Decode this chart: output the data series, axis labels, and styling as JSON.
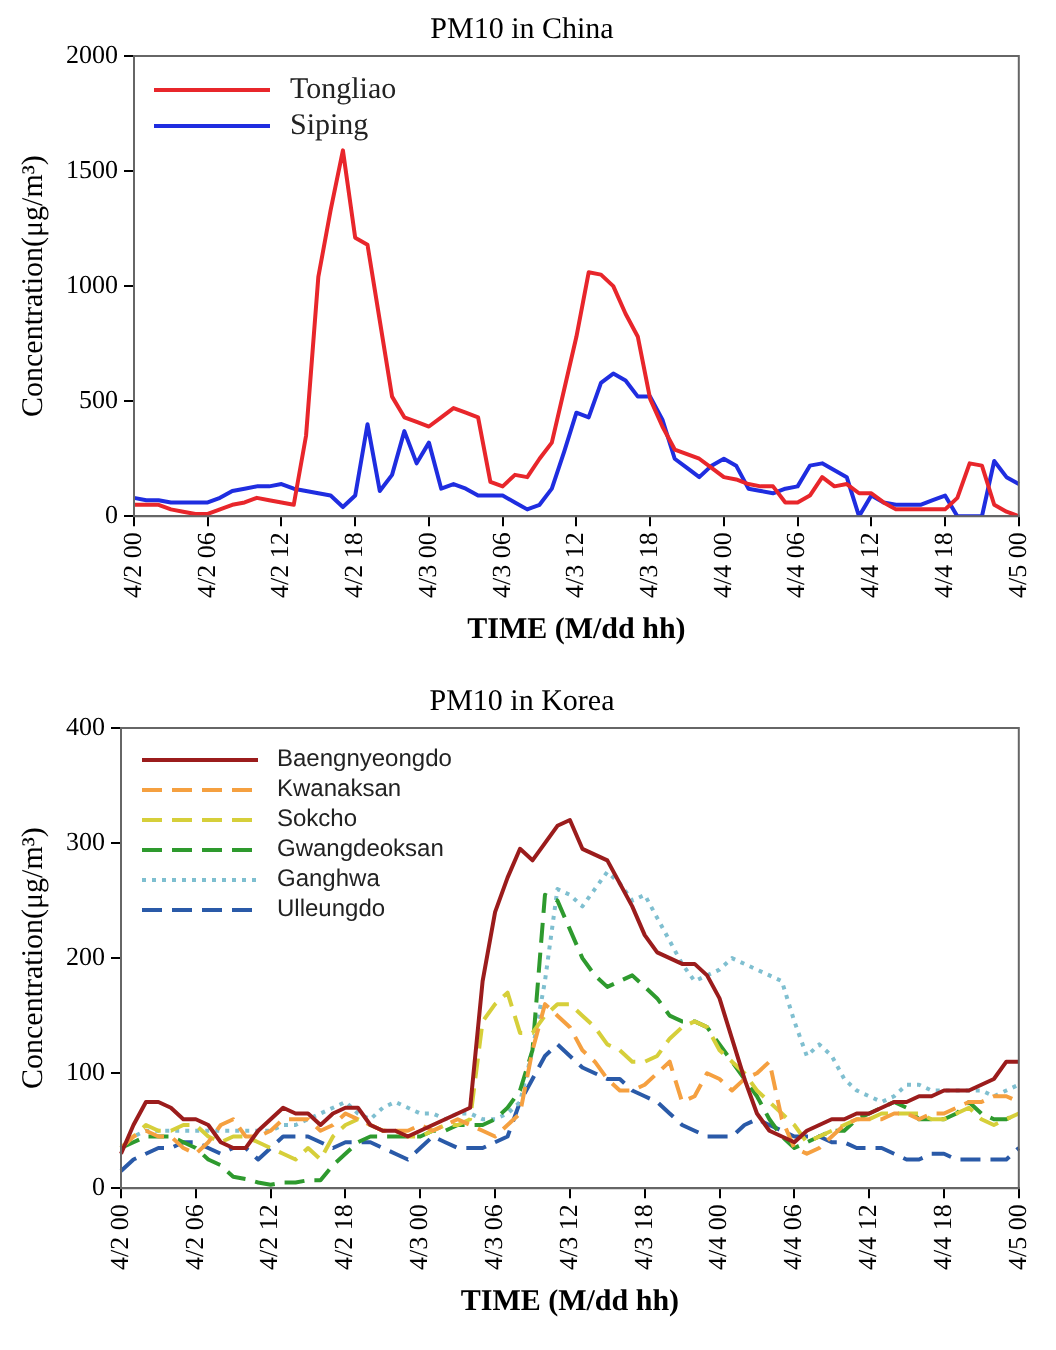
{
  "chart_data": [
    {
      "type": "line",
      "title": "PM10 in China",
      "xlabel": "TIME (M/dd hh)",
      "ylabel": "Concentration(μg/m³)",
      "grid": false,
      "legend": "top left",
      "marker": "none",
      "categories": [
        "4/2 00",
        null,
        null,
        null,
        null,
        null,
        "4/2 06",
        null,
        null,
        null,
        null,
        null,
        "4/2 12",
        null,
        null,
        null,
        null,
        null,
        "4/2 18",
        null,
        null,
        null,
        null,
        null,
        "4/3 00",
        null,
        null,
        null,
        null,
        null,
        "4/3 06",
        null,
        null,
        null,
        null,
        null,
        "4/3 12",
        null,
        null,
        null,
        null,
        null,
        "4/3 18",
        null,
        null,
        null,
        null,
        null,
        "4/4 00",
        null,
        null,
        null,
        null,
        null,
        "4/4 06",
        null,
        null,
        null,
        null,
        null,
        "4/4 12",
        null,
        null,
        null,
        null,
        null,
        "4/4 18",
        null,
        null,
        null,
        null,
        null,
        "4/5 00"
      ],
      "ylim": [
        0,
        2000
      ],
      "yticks": [
        0,
        500,
        1000,
        1500,
        2000
      ],
      "series": [
        {
          "name": "Tongliao",
          "color": "#e8262b",
          "line_style": "solid",
          "values": [
            50,
            50,
            50,
            30,
            20,
            10,
            10,
            30,
            50,
            60,
            80,
            70,
            60,
            50,
            350,
            1040,
            1330,
            1590,
            1210,
            1180,
            850,
            520,
            430,
            410,
            390,
            430,
            470,
            450,
            430,
            150,
            130,
            180,
            170,
            250,
            320,
            550,
            780,
            1060,
            1050,
            1000,
            880,
            780,
            510,
            390,
            290,
            270,
            250,
            210,
            170,
            160,
            140,
            130,
            130,
            60,
            60,
            90,
            170,
            130,
            140,
            100,
            100,
            60,
            30,
            30,
            30,
            30,
            30,
            80,
            230,
            220,
            50,
            20,
            0
          ]
        },
        {
          "name": "Siping",
          "color": "#1f2de0",
          "line_style": "solid",
          "values": [
            80,
            70,
            70,
            60,
            60,
            60,
            60,
            80,
            110,
            120,
            130,
            130,
            140,
            120,
            110,
            100,
            90,
            40,
            90,
            400,
            110,
            180,
            370,
            230,
            320,
            120,
            140,
            120,
            90,
            90,
            90,
            60,
            30,
            50,
            120,
            280,
            450,
            430,
            580,
            620,
            590,
            520,
            520,
            420,
            250,
            210,
            170,
            220,
            250,
            220,
            120,
            110,
            100,
            120,
            130,
            220,
            230,
            200,
            170,
            0,
            90,
            60,
            50,
            50,
            50,
            70,
            90,
            0,
            0,
            0,
            240,
            170,
            140
          ]
        }
      ]
    },
    {
      "type": "line",
      "title": "PM10 in Korea",
      "xlabel": "TIME (M/dd hh)",
      "ylabel": "Concentration(μg/m³)",
      "grid": false,
      "legend": "top left",
      "marker": "none",
      "categories": [
        "4/2 00",
        null,
        null,
        null,
        null,
        null,
        "4/2 06",
        null,
        null,
        null,
        null,
        null,
        "4/2 12",
        null,
        null,
        null,
        null,
        null,
        "4/2 18",
        null,
        null,
        null,
        null,
        null,
        "4/3 00",
        null,
        null,
        null,
        null,
        null,
        "4/3 06",
        null,
        null,
        null,
        null,
        null,
        "4/3 12",
        null,
        null,
        null,
        null,
        null,
        "4/3 18",
        null,
        null,
        null,
        null,
        null,
        "4/4 00",
        null,
        null,
        null,
        null,
        null,
        "4/4 06",
        null,
        null,
        null,
        null,
        null,
        "4/4 12",
        null,
        null,
        null,
        null,
        null,
        "4/4 18",
        null,
        null,
        null,
        null,
        null,
        "4/5 00"
      ],
      "ylim": [
        0,
        400
      ],
      "yticks": [
        0,
        100,
        200,
        300,
        400
      ],
      "series": [
        {
          "name": "Baengnyeongdo",
          "color": "#9b1c1c",
          "line_style": "solid",
          "values": [
            30,
            55,
            75,
            75,
            70,
            60,
            60,
            55,
            40,
            35,
            35,
            50,
            60,
            70,
            65,
            65,
            55,
            65,
            70,
            70,
            55,
            50,
            50,
            45,
            50,
            55,
            60,
            65,
            70,
            180,
            240,
            270,
            295,
            285,
            300,
            315,
            320,
            295,
            290,
            285,
            265,
            245,
            220,
            205,
            200,
            195,
            195,
            185,
            165,
            130,
            95,
            65,
            50,
            45,
            40,
            50,
            55,
            60,
            60,
            65,
            65,
            70,
            75,
            75,
            80,
            80,
            85,
            85,
            85,
            90,
            95,
            110,
            110
          ]
        },
        {
          "name": "Kwanaksan",
          "color": "#f5a040",
          "line_style": "dashed",
          "values": [
            35,
            45,
            50,
            45,
            45,
            35,
            30,
            40,
            55,
            60,
            45,
            45,
            50,
            60,
            60,
            60,
            50,
            55,
            65,
            60,
            55,
            50,
            50,
            50,
            55,
            50,
            55,
            60,
            55,
            50,
            45,
            55,
            65,
            120,
            160,
            150,
            140,
            120,
            110,
            95,
            85,
            85,
            90,
            100,
            110,
            75,
            80,
            100,
            95,
            85,
            95,
            100,
            110,
            60,
            35,
            30,
            35,
            45,
            55,
            60,
            60,
            60,
            65,
            65,
            60,
            65,
            65,
            70,
            75,
            75,
            80,
            80,
            75
          ]
        },
        {
          "name": "Sokcho",
          "color": "#d6cf3a",
          "line_style": "dashed",
          "values": [
            35,
            45,
            55,
            50,
            50,
            55,
            55,
            45,
            40,
            45,
            45,
            40,
            35,
            30,
            25,
            35,
            25,
            45,
            55,
            60,
            55,
            50,
            50,
            45,
            45,
            50,
            55,
            55,
            60,
            145,
            160,
            170,
            135,
            135,
            150,
            160,
            160,
            150,
            140,
            125,
            120,
            110,
            110,
            115,
            130,
            140,
            145,
            140,
            120,
            110,
            100,
            85,
            75,
            65,
            55,
            40,
            45,
            50,
            55,
            60,
            60,
            65,
            65,
            65,
            65,
            60,
            60,
            65,
            70,
            60,
            55,
            60,
            65
          ]
        },
        {
          "name": "Gwangdeoksan",
          "color": "#2e9a2e",
          "line_style": "dashed",
          "values": [
            35,
            40,
            45,
            45,
            45,
            40,
            35,
            25,
            20,
            10,
            8,
            5,
            3,
            5,
            5,
            7,
            7,
            20,
            30,
            40,
            45,
            45,
            45,
            45,
            45,
            50,
            50,
            55,
            55,
            55,
            60,
            70,
            85,
            120,
            255,
            250,
            225,
            200,
            185,
            175,
            180,
            185,
            175,
            165,
            150,
            145,
            145,
            140,
            125,
            110,
            95,
            80,
            60,
            45,
            35,
            40,
            45,
            50,
            50,
            60,
            65,
            70,
            75,
            70,
            60,
            60,
            60,
            65,
            75,
            65,
            60,
            60,
            65
          ]
        },
        {
          "name": "Ganghwa",
          "color": "#7fbfd0",
          "line_style": "dotted",
          "values": [
            35,
            45,
            50,
            50,
            50,
            50,
            50,
            50,
            50,
            50,
            50,
            50,
            50,
            55,
            55,
            60,
            65,
            70,
            75,
            65,
            60,
            70,
            75,
            70,
            65,
            65,
            60,
            65,
            65,
            60,
            60,
            65,
            75,
            120,
            180,
            260,
            255,
            245,
            260,
            275,
            265,
            250,
            255,
            235,
            215,
            195,
            180,
            185,
            190,
            200,
            195,
            190,
            185,
            180,
            145,
            115,
            125,
            115,
            95,
            85,
            80,
            75,
            80,
            90,
            90,
            85,
            85,
            85,
            85,
            85,
            80,
            85,
            90
          ]
        },
        {
          "name": "Ulleungdo",
          "color": "#2a5aa8",
          "line_style": "dashed",
          "values": [
            15,
            25,
            30,
            35,
            35,
            40,
            40,
            35,
            30,
            35,
            35,
            25,
            35,
            45,
            45,
            45,
            40,
            35,
            40,
            40,
            40,
            35,
            30,
            25,
            35,
            45,
            40,
            35,
            35,
            35,
            40,
            45,
            75,
            95,
            115,
            125,
            115,
            105,
            100,
            95,
            95,
            85,
            80,
            75,
            65,
            55,
            50,
            45,
            45,
            45,
            55,
            60,
            55,
            50,
            45,
            45,
            45,
            40,
            40,
            35,
            35,
            35,
            30,
            25,
            25,
            30,
            30,
            25,
            25,
            25,
            25,
            25,
            35
          ]
        }
      ]
    }
  ]
}
